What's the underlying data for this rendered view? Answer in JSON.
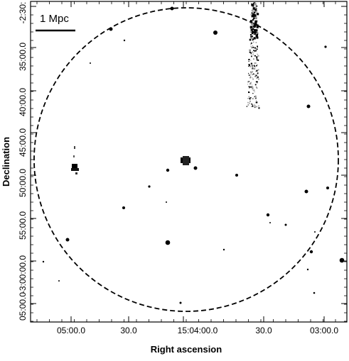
{
  "map": {
    "scale_bar_label": "1 Mpc",
    "x_axis": {
      "title": "Right ascension",
      "tick_labels": [
        "05:00.0",
        "30.0",
        "15:04:00.0",
        "30.0",
        "03:00.0"
      ]
    },
    "y_axis": {
      "title": "Declination",
      "tick_labels": [
        "-2:30:",
        "35:00.0",
        "40:00.0",
        "45:00.0",
        "50:00.0",
        "55:00.0",
        "-3:00:00.0",
        "05:00.0"
      ]
    },
    "circle_style": "dashed",
    "colors": {
      "ink": "#000000",
      "frame": "#000000",
      "faint_emission": "#9a9a9a",
      "background": "#ffffff"
    }
  }
}
